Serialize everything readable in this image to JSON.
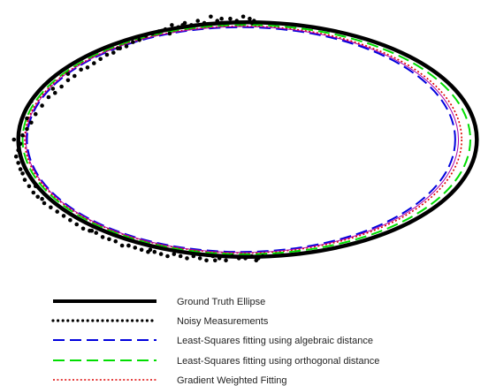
{
  "chart_data": {
    "type": "scatter",
    "title": "",
    "xlabel": "",
    "ylabel": "",
    "axes_visible": false,
    "grid": false,
    "xlim": [
      -1.12,
      1.12
    ],
    "ylim": [
      -0.6,
      0.6
    ],
    "legend_position": "bottom-left",
    "series": [
      {
        "name": "Ground Truth Ellipse",
        "kind": "ellipse-curve",
        "center": [
          0.0,
          0.0
        ],
        "semi_axis_x": 1.06,
        "semi_axis_y": 0.553,
        "color": "#000000",
        "line_style": "solid"
      },
      {
        "name": "Noisy Measurements",
        "kind": "points",
        "color": "#000000",
        "marker": "dot",
        "x": [
          0.01,
          0.02,
          0.03,
          -0.02,
          -0.05,
          -0.08,
          -0.11,
          -0.14,
          -0.17,
          -0.2,
          -0.23,
          -0.26,
          -0.29,
          -0.32,
          -0.35,
          -0.38,
          -0.41,
          -0.44,
          -0.47,
          -0.5,
          -0.53,
          -0.56,
          -0.59,
          -0.62,
          -0.65,
          -0.68,
          -0.71,
          -0.74,
          -0.77,
          -0.8,
          -0.83,
          -0.86,
          -0.89,
          -0.92,
          -0.95,
          -0.98,
          -1.0,
          -1.02,
          -1.04,
          -1.05,
          -1.06,
          -1.07,
          -1.08,
          -1.06,
          -1.05,
          -1.04,
          -1.03,
          -1.01,
          -0.99,
          -0.97,
          -0.94,
          -0.91,
          -0.88,
          -0.85,
          -0.82,
          -0.79,
          -0.76,
          -0.73,
          -0.7,
          -0.67,
          -0.64,
          -0.61,
          -0.58,
          -0.55,
          -0.52,
          -0.49,
          -0.46,
          -0.43,
          -0.4,
          -0.37,
          -0.34,
          -0.31,
          -0.28,
          -0.25,
          -0.22,
          -0.19,
          -0.16,
          -0.13,
          -0.1,
          -0.07,
          -0.04,
          -0.01,
          0.02,
          0.04,
          0.05,
          0.07,
          -0.36,
          -0.6,
          -0.83,
          -1.02,
          -0.95,
          -0.72,
          -0.45,
          -0.15,
          -1.0,
          -0.98,
          -0.9,
          -0.55,
          -0.3,
          -0.12
        ],
        "y": [
          0.57,
          0.55,
          0.56,
          0.58,
          0.56,
          0.57,
          0.55,
          0.56,
          0.58,
          0.55,
          0.56,
          0.54,
          0.55,
          0.53,
          0.54,
          0.52,
          0.51,
          0.5,
          0.49,
          0.47,
          0.46,
          0.44,
          0.43,
          0.41,
          0.4,
          0.38,
          0.36,
          0.34,
          0.33,
          0.3,
          0.28,
          0.25,
          0.22,
          0.2,
          0.16,
          0.12,
          0.08,
          0.05,
          0.02,
          -0.02,
          -0.05,
          -0.08,
          0.0,
          -0.11,
          -0.14,
          -0.16,
          -0.19,
          -0.22,
          -0.25,
          -0.27,
          -0.3,
          -0.32,
          -0.34,
          -0.36,
          -0.38,
          -0.4,
          -0.42,
          -0.43,
          -0.44,
          -0.46,
          -0.47,
          -0.48,
          -0.5,
          -0.5,
          -0.51,
          -0.52,
          -0.53,
          -0.53,
          -0.54,
          -0.55,
          -0.54,
          -0.55,
          -0.56,
          -0.55,
          -0.56,
          -0.57,
          -0.55,
          -0.56,
          -0.57,
          -0.55,
          -0.56,
          -0.56,
          -0.55,
          -0.57,
          -0.56,
          -0.55,
          0.5,
          0.43,
          0.31,
          0.1,
          -0.28,
          -0.43,
          -0.52,
          -0.57,
          0.18,
          -0.22,
          0.24,
          -0.5,
          0.54,
          0.57
        ]
      },
      {
        "name": "Least-Squares fitting using algebraic distance",
        "kind": "ellipse-curve",
        "center": [
          -0.03,
          0.0
        ],
        "semi_axis_x": 0.99,
        "semi_axis_y": 0.53,
        "color": "#0000dd",
        "line_style": "dashed"
      },
      {
        "name": "Least-Squares fitting using orthogonal distance",
        "kind": "ellipse-curve",
        "center": [
          -0.005,
          0.0
        ],
        "semi_axis_x": 1.035,
        "semi_axis_y": 0.54,
        "color": "#00dd00",
        "line_style": "dashed"
      },
      {
        "name": "Gradient Weighted Fitting",
        "kind": "ellipse-curve",
        "center": [
          -0.02,
          0.0
        ],
        "semi_axis_x": 1.01,
        "semi_axis_y": 0.535,
        "color": "#dd0000",
        "line_style": "dotted"
      },
      {
        "name": "",
        "kind": "ellipse-curve",
        "center": [
          -0.025,
          0.0
        ],
        "semi_axis_x": 1.0,
        "semi_axis_y": 0.533,
        "color": "#aa00aa",
        "line_style": "solid-thin"
      }
    ]
  }
}
